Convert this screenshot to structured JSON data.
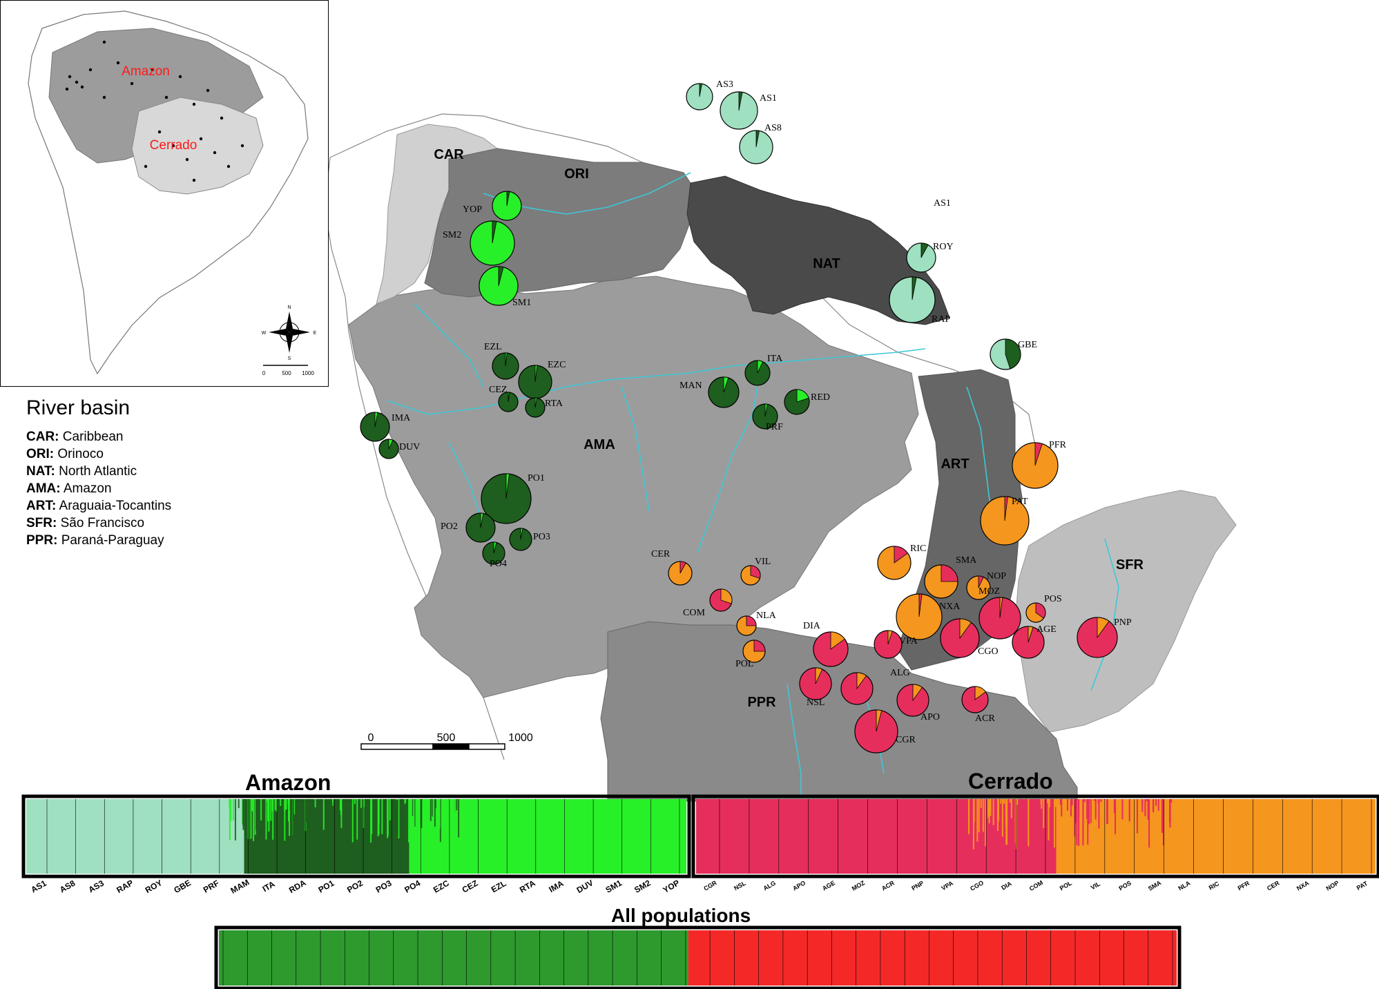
{
  "inset": {
    "labels": [
      "Amazon",
      "Cerrado"
    ],
    "label_color": "#ff1a1a",
    "compass_letters": [
      "N",
      "E",
      "S",
      "W"
    ],
    "scale_ticks": [
      "0",
      "500",
      "1000"
    ]
  },
  "legend": {
    "title": "River basin",
    "items": [
      {
        "code": "CAR:",
        "name": "Caribbean"
      },
      {
        "code": "ORI:",
        "name": "Orinoco"
      },
      {
        "code": "NAT:",
        "name": "North Atlantic"
      },
      {
        "code": "AMA:",
        "name": "Amazon"
      },
      {
        "code": "ART:",
        "name": "Araguaia-Tocantins"
      },
      {
        "code": "SFR:",
        "name": "São Francisco"
      },
      {
        "code": "PPR:",
        "name": "Paraná-Paraguay"
      }
    ]
  },
  "basins": {
    "labels": [
      "CAR",
      "ORI",
      "NAT",
      "AMA",
      "ART",
      "SFR",
      "PPR"
    ],
    "colors": {
      "CAR": "#d0d0d0",
      "ORI": "#7c7c7c",
      "NAT": "#4a4a4a",
      "AMA": "#9c9c9c",
      "ART": "#666666",
      "SFR": "#bebebe",
      "PPR": "#8a8a8a"
    },
    "river_color": "#3cc8d8"
  },
  "map_scale": {
    "ticks": [
      "0",
      "500",
      "1000"
    ]
  },
  "colors": {
    "amazon_light": "#9ee0c0",
    "amazon_dark": "#1e5e1e",
    "amazon_bright": "#28f028",
    "cerrado_red": "#e62e5c",
    "cerrado_orange": "#f5961e",
    "all_green": "#2e9a2e",
    "all_red": "#f52828"
  },
  "populations": [
    {
      "code": "AS3",
      "fractions": [
        0.97,
        0.03
      ]
    },
    {
      "code": "AS1",
      "fractions": [
        0.97,
        0.03
      ]
    },
    {
      "code": "AS8",
      "fractions": [
        0.97,
        0.03
      ]
    },
    {
      "code": "YOP",
      "fractions": [
        0.97,
        0.03
      ]
    },
    {
      "code": "SM2",
      "fractions": [
        0.97,
        0.03
      ]
    },
    {
      "code": "SM1",
      "fractions": [
        0.96,
        0.04
      ]
    },
    {
      "code": "ROY",
      "fractions": [
        0.92,
        0.08
      ]
    },
    {
      "code": "RAP",
      "fractions": [
        0.97,
        0.03
      ]
    },
    {
      "code": "GBE",
      "fractions": [
        0.55,
        0.45
      ]
    },
    {
      "code": "EZL",
      "fractions": [
        0.98,
        0.02
      ]
    },
    {
      "code": "EZC",
      "fractions": [
        0.98,
        0.02
      ]
    },
    {
      "code": "CEZ",
      "fractions": [
        0.98,
        0.02
      ]
    },
    {
      "code": "RTA",
      "fractions": [
        0.97,
        0.03
      ]
    },
    {
      "code": "IMA",
      "fractions": [
        0.97,
        0.03
      ]
    },
    {
      "code": "DUV",
      "fractions": [
        0.93,
        0.07
      ]
    },
    {
      "code": "ITA",
      "fractions": [
        0.93,
        0.07
      ]
    },
    {
      "code": "MAN",
      "fractions": [
        0.95,
        0.05
      ]
    },
    {
      "code": "RED",
      "fractions": [
        0.8,
        0.2
      ]
    },
    {
      "code": "PRF",
      "fractions": [
        0.97,
        0.03
      ]
    },
    {
      "code": "PO1",
      "fractions": [
        0.98,
        0.02
      ]
    },
    {
      "code": "PO2",
      "fractions": [
        0.97,
        0.03
      ]
    },
    {
      "code": "PO3",
      "fractions": [
        0.97,
        0.03
      ]
    },
    {
      "code": "PO4",
      "fractions": [
        0.96,
        0.04
      ]
    },
    {
      "code": "PFR",
      "fractions": [
        0.95,
        0.05
      ]
    },
    {
      "code": "PAT",
      "fractions": [
        0.98,
        0.02
      ]
    },
    {
      "code": "RIC",
      "fractions": [
        0.85,
        0.15
      ]
    },
    {
      "code": "SMA",
      "fractions": [
        0.75,
        0.25
      ]
    },
    {
      "code": "NOP",
      "fractions": [
        0.93,
        0.07
      ]
    },
    {
      "code": "MOZ",
      "fractions": [
        0.98,
        0.02
      ]
    },
    {
      "code": "NXA",
      "fractions": [
        0.98,
        0.02
      ]
    },
    {
      "code": "POS",
      "fractions": [
        0.65,
        0.35
      ]
    },
    {
      "code": "PNP",
      "fractions": [
        0.9,
        0.1
      ]
    },
    {
      "code": "AGE",
      "fractions": [
        0.95,
        0.05
      ]
    },
    {
      "code": "CGO",
      "fractions": [
        0.9,
        0.1
      ]
    },
    {
      "code": "VPA",
      "fractions": [
        0.95,
        0.05
      ]
    },
    {
      "code": "DIA",
      "fractions": [
        0.85,
        0.15
      ]
    },
    {
      "code": "ALG",
      "fractions": [
        0.9,
        0.1
      ]
    },
    {
      "code": "NSL",
      "fractions": [
        0.93,
        0.07
      ]
    },
    {
      "code": "APO",
      "fractions": [
        0.9,
        0.1
      ]
    },
    {
      "code": "ACR",
      "fractions": [
        0.85,
        0.15
      ]
    },
    {
      "code": "CGR",
      "fractions": [
        0.96,
        0.04
      ]
    },
    {
      "code": "CER",
      "fractions": [
        0.92,
        0.08
      ]
    },
    {
      "code": "VIL",
      "fractions": [
        0.7,
        0.3
      ]
    },
    {
      "code": "COM",
      "fractions": [
        0.7,
        0.3
      ]
    },
    {
      "code": "NLA",
      "fractions": [
        0.75,
        0.25
      ]
    },
    {
      "code": "POL",
      "fractions": [
        0.75,
        0.25
      ]
    }
  ],
  "map_extra_labels": [
    "AS1"
  ],
  "structure": {
    "amazon_title": "Amazon",
    "cerrado_title": "Cerrado",
    "all_title": "All populations",
    "amazon_pops": [
      "AS1",
      "AS8",
      "AS3",
      "RAP",
      "ROY",
      "GBE",
      "PRF",
      "MAM",
      "ITA",
      "RDA",
      "PO1",
      "PO2",
      "PO3",
      "PO4",
      "EZC",
      "CEZ",
      "EZL",
      "RTA",
      "IMA",
      "DUV",
      "SM1",
      "SM2",
      "YOP"
    ],
    "cerrado_pops": [
      "CGR",
      "NSL",
      "ALG",
      "APO",
      "AGE",
      "MOZ",
      "ACR",
      "PNP",
      "VPA",
      "CGO",
      "DIA",
      "COM",
      "POL",
      "VIL",
      "POS",
      "SMA",
      "NLA",
      "RIC",
      "PFR",
      "CER",
      "NXA",
      "NOP",
      "PAT"
    ]
  }
}
